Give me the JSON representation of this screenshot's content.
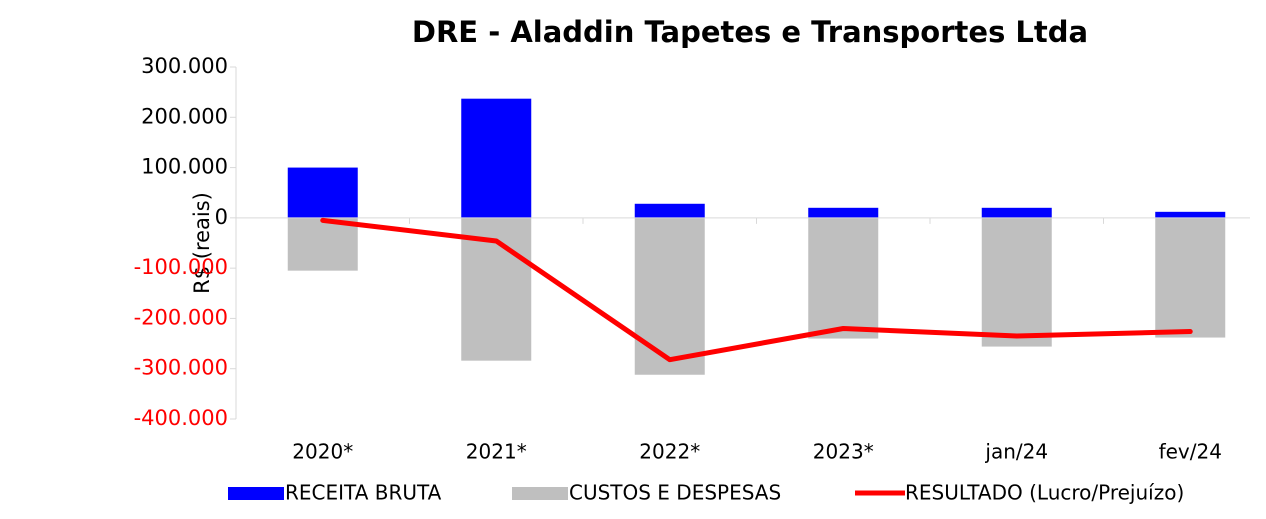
{
  "chart_data": {
    "type": "bar_line",
    "title": "DRE - Aladdin Tapetes e Transportes Ltda",
    "y_label": "R$ (reais)",
    "categories": [
      "2020*",
      "2021*",
      "2022*",
      "2023*",
      "jan/24",
      "fev/24"
    ],
    "series": [
      {
        "name": "RECEITA BRUTA",
        "type": "bar",
        "color": "#0000ff",
        "values": [
          100000,
          237000,
          28000,
          20000,
          20000,
          12000
        ]
      },
      {
        "name": "CUSTOS E DESPESAS",
        "type": "bar",
        "color": "#bfbfbf",
        "values": [
          -105000,
          -284000,
          -312000,
          -240000,
          -256000,
          -238000
        ]
      },
      {
        "name": "RESULTADO (Lucro/Prejuízo)",
        "type": "line",
        "color": "#ff0000",
        "values": [
          -5000,
          -46000,
          -282000,
          -220000,
          -235000,
          -226000
        ]
      }
    ],
    "ylim": [
      -400000,
      300000
    ],
    "yticks": [
      {
        "value": -400000,
        "label": "-400.000"
      },
      {
        "value": -300000,
        "label": "-300.000"
      },
      {
        "value": -200000,
        "label": "-200.000"
      },
      {
        "value": -100000,
        "label": "-100.000"
      },
      0,
      {
        "value": 100000,
        "label": "100.000"
      },
      {
        "value": 200000,
        "label": "200.000"
      },
      {
        "value": 300000,
        "label": "300.000"
      }
    ],
    "negative_tick_color": "#ff0000",
    "grid": false,
    "legend": "bottom"
  }
}
